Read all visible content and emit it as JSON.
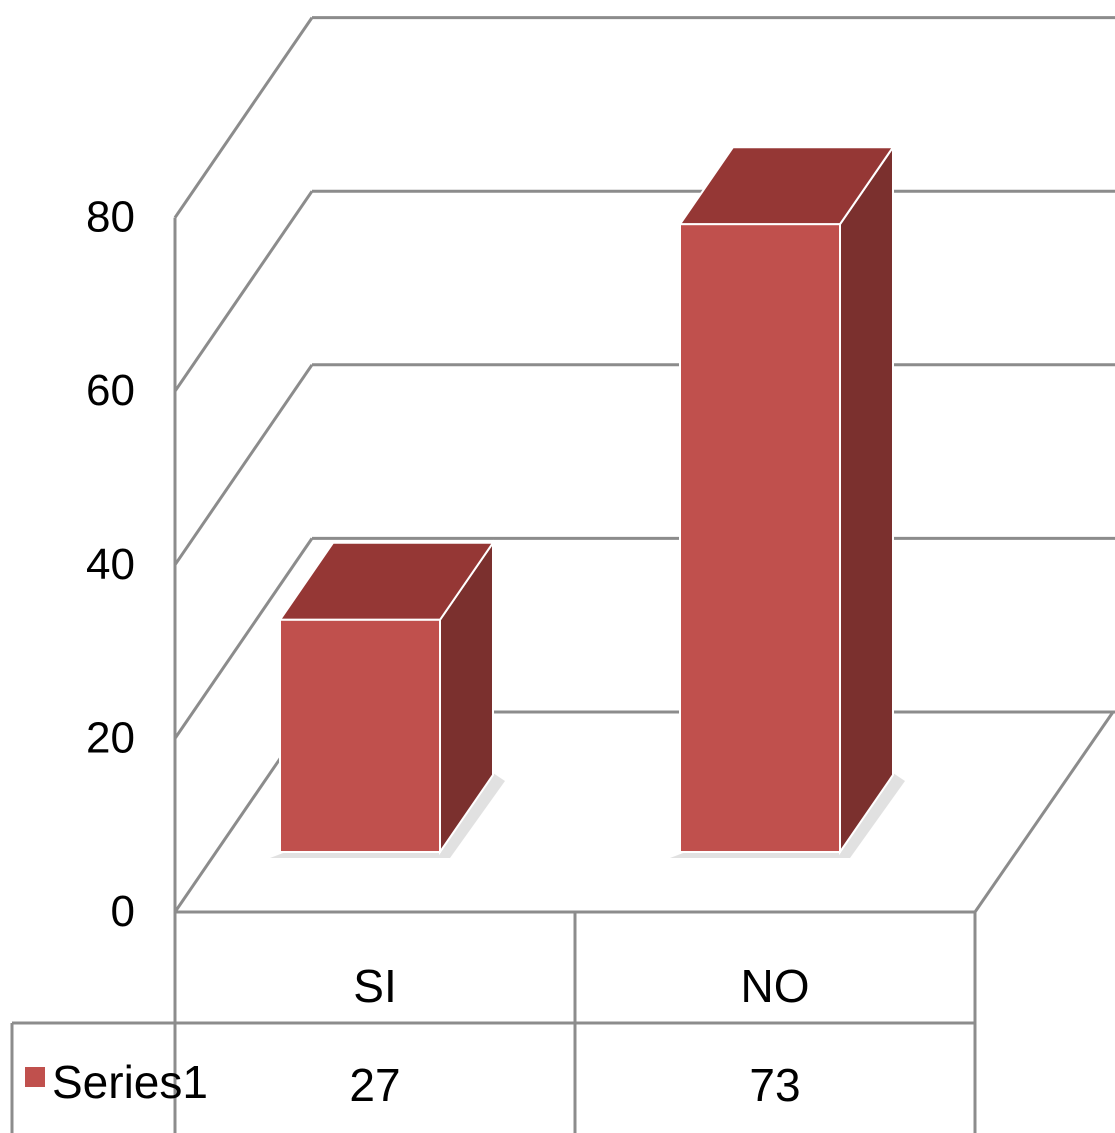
{
  "chart_data": {
    "type": "bar",
    "categories": [
      "SI",
      "NO"
    ],
    "series": [
      {
        "name": "Series1",
        "values": [
          27,
          73
        ]
      }
    ],
    "ylim": [
      0,
      80
    ],
    "yticks": [
      0,
      20,
      40,
      60,
      80
    ],
    "grid": true,
    "legend": "data-table-left",
    "data_table": true
  },
  "colors": {
    "bar_front": "#c0504d",
    "bar_top": "#953735",
    "bar_side": "#7b302e",
    "legend_key": "#c0504d"
  }
}
